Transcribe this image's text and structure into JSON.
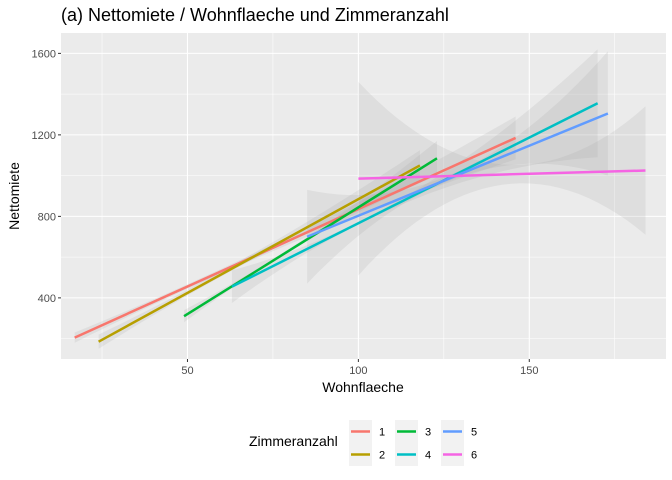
{
  "chart_data": {
    "type": "line",
    "title": "(a) Nettomiete / Wohnflaeche und Zimmeranzahl",
    "xlabel": "Wohnflaeche",
    "ylabel": "Nettomiete",
    "xlim": [
      13,
      190
    ],
    "ylim": [
      100,
      1700
    ],
    "x_ticks": [
      50,
      100,
      150
    ],
    "y_ticks": [
      400,
      800,
      1200,
      1600
    ],
    "grid": true,
    "legend": {
      "title": "Zimmeranzahl",
      "position": "bottom",
      "columns": 3
    },
    "series": [
      {
        "name": "1",
        "color": "#F8766D",
        "line": [
          [
            17,
            205
          ],
          [
            146,
            1185
          ]
        ],
        "band_lower": [
          [
            17,
            180
          ],
          [
            81.5,
            675
          ],
          [
            146,
            1080
          ]
        ],
        "band_upper": [
          [
            17,
            230
          ],
          [
            81.5,
            715
          ],
          [
            146,
            1290
          ]
        ]
      },
      {
        "name": "2",
        "color": "#B79F00",
        "line": [
          [
            24,
            185
          ],
          [
            118,
            1050
          ]
        ],
        "band_lower": [
          [
            24,
            150
          ],
          [
            71,
            605
          ],
          [
            118,
            975
          ]
        ],
        "band_upper": [
          [
            24,
            220
          ],
          [
            71,
            635
          ],
          [
            118,
            1125
          ]
        ]
      },
      {
        "name": "3",
        "color": "#00BA38",
        "line": [
          [
            49,
            310
          ],
          [
            123,
            1085
          ]
        ],
        "band_lower": [
          [
            49,
            280
          ],
          [
            86,
            690
          ],
          [
            123,
            1000
          ]
        ],
        "band_upper": [
          [
            49,
            340
          ],
          [
            86,
            710
          ],
          [
            123,
            1170
          ]
        ]
      },
      {
        "name": "4",
        "color": "#00BFC4",
        "line": [
          [
            63,
            455
          ],
          [
            170,
            1355
          ]
        ],
        "band_lower": [
          [
            63,
            375
          ],
          [
            116.5,
            885
          ],
          [
            170,
            1090
          ]
        ],
        "band_upper": [
          [
            63,
            535
          ],
          [
            116.5,
            925
          ],
          [
            170,
            1620
          ]
        ]
      },
      {
        "name": "5",
        "color": "#619CFF",
        "line": [
          [
            85,
            700
          ],
          [
            173,
            1305
          ]
        ],
        "band_lower": [
          [
            85,
            470
          ],
          [
            129,
            990
          ],
          [
            173,
            1000
          ]
        ],
        "band_upper": [
          [
            85,
            930
          ],
          [
            129,
            1020
          ],
          [
            173,
            1610
          ]
        ]
      },
      {
        "name": "6",
        "color": "#F564E3",
        "line": [
          [
            100,
            985
          ],
          [
            184,
            1025
          ]
        ],
        "band_lower": [
          [
            100,
            510
          ],
          [
            142,
            955
          ],
          [
            184,
            710
          ]
        ],
        "band_upper": [
          [
            100,
            1460
          ],
          [
            142,
            1055
          ],
          [
            184,
            1340
          ]
        ]
      }
    ]
  }
}
